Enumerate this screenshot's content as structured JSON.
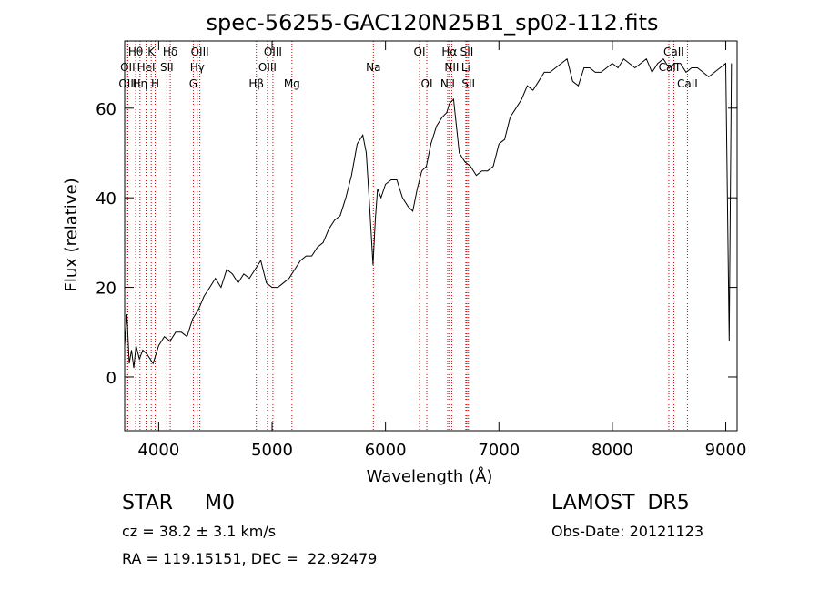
{
  "chart_data": {
    "type": "line",
    "title": "spec-56255-GAC120N25B1_sp02-112.fits",
    "xlabel": "Wavelength (Å)",
    "ylabel": "Flux (relative)",
    "xlim": [
      3700,
      9100
    ],
    "ylim": [
      -12,
      75
    ],
    "xticks": [
      4000,
      5000,
      6000,
      7000,
      8000,
      9000
    ],
    "yticks": [
      0,
      20,
      40,
      60
    ],
    "grid": false,
    "line_color": "#000000",
    "marker_color": "#cc0000",
    "series": [
      {
        "x": [
          3700,
          3720,
          3740,
          3760,
          3780,
          3800,
          3830,
          3860,
          3900,
          3950,
          4000,
          4050,
          4100,
          4150,
          4200,
          4250,
          4300,
          4350,
          4400,
          4450,
          4500,
          4550,
          4600,
          4650,
          4700,
          4750,
          4800,
          4850,
          4900,
          4950,
          5000,
          5050,
          5100,
          5150,
          5200,
          5250,
          5300,
          5350,
          5400,
          5450,
          5500,
          5550,
          5600,
          5650,
          5700,
          5750,
          5800,
          5830,
          5860,
          5890,
          5910,
          5930,
          5960,
          6000,
          6050,
          6100,
          6150,
          6200,
          6240,
          6280,
          6320,
          6360,
          6400,
          6450,
          6500,
          6540,
          6563,
          6600,
          6650,
          6700,
          6750,
          6800,
          6850,
          6900,
          6950,
          7000,
          7050,
          7100,
          7150,
          7200,
          7250,
          7300,
          7350,
          7400,
          7450,
          7500,
          7550,
          7600,
          7650,
          7700,
          7750,
          7800,
          7850,
          7900,
          7950,
          8000,
          8050,
          8100,
          8150,
          8200,
          8250,
          8300,
          8350,
          8400,
          8450,
          8500,
          8550,
          8600,
          8650,
          8700,
          8750,
          8800,
          8850,
          8900,
          8950,
          9000,
          9030,
          9050
        ],
        "y": [
          7,
          14,
          3,
          6,
          2,
          7,
          4,
          6,
          5,
          3,
          7,
          9,
          8,
          10,
          10,
          9,
          13,
          15,
          18,
          20,
          22,
          20,
          24,
          23,
          21,
          23,
          22,
          24,
          26,
          21,
          20,
          20,
          21,
          22,
          24,
          26,
          27,
          27,
          29,
          30,
          33,
          35,
          36,
          40,
          45,
          52,
          54,
          50,
          38,
          25,
          35,
          42,
          40,
          43,
          44,
          44,
          40,
          38,
          37,
          42,
          46,
          47,
          52,
          56,
          58,
          59,
          61,
          62,
          50,
          48,
          47,
          45,
          46,
          46,
          47,
          52,
          53,
          58,
          60,
          62,
          65,
          64,
          66,
          68,
          68,
          69,
          70,
          71,
          66,
          65,
          69,
          69,
          68,
          68,
          69,
          70,
          69,
          71,
          70,
          69,
          70,
          71,
          68,
          70,
          71,
          69,
          70,
          70,
          68,
          69,
          69,
          68,
          67,
          68,
          69,
          70,
          8,
          70
        ]
      }
    ],
    "lines": [
      {
        "label": "Hθ",
        "x": 3797,
        "row": 0
      },
      {
        "label": "K",
        "x": 3934,
        "row": 0
      },
      {
        "label": "Hδ",
        "x": 4102,
        "row": 0
      },
      {
        "label": "OIII",
        "x": 4363,
        "row": 0
      },
      {
        "label": "OIII",
        "x": 5007,
        "row": 0
      },
      {
        "label": "OI",
        "x": 6300,
        "row": 0
      },
      {
        "label": "Hα",
        "x": 6563,
        "row": 0
      },
      {
        "label": "SII",
        "x": 6717,
        "row": 0
      },
      {
        "label": "CaII",
        "x": 8542,
        "row": 0
      },
      {
        "label": "OII",
        "x": 3727,
        "row": 1
      },
      {
        "label": "HeI",
        "x": 3889,
        "row": 1
      },
      {
        "label": "SII",
        "x": 4072,
        "row": 1
      },
      {
        "label": "Hγ",
        "x": 4340,
        "row": 1
      },
      {
        "label": "OIII",
        "x": 4959,
        "row": 1
      },
      {
        "label": "Na",
        "x": 5893,
        "row": 1
      },
      {
        "label": "NII",
        "x": 6584,
        "row": 1
      },
      {
        "label": "Li",
        "x": 6708,
        "row": 1
      },
      {
        "label": "CaII",
        "x": 8498,
        "row": 1
      },
      {
        "label": "OIII",
        "x": 3727,
        "row": 2
      },
      {
        "label": "Hη",
        "x": 3835,
        "row": 2
      },
      {
        "label": "H",
        "x": 3969,
        "row": 2
      },
      {
        "label": "G",
        "x": 4305,
        "row": 2
      },
      {
        "label": "Hβ",
        "x": 4861,
        "row": 2
      },
      {
        "label": "Mg",
        "x": 5175,
        "row": 2
      },
      {
        "label": "OI",
        "x": 6364,
        "row": 2
      },
      {
        "label": "NII",
        "x": 6548,
        "row": 2
      },
      {
        "label": "SII",
        "x": 6731,
        "row": 2
      },
      {
        "label": "CaII",
        "x": 8662,
        "row": 2
      }
    ]
  },
  "info": {
    "class": "STAR     M0",
    "survey": "LAMOST  DR5",
    "cz": "cz = 38.2 ± 3.1 km/s",
    "obs_date": "Obs-Date: 20121123",
    "coords": "RA = 119.15151, DEC =  22.92479"
  }
}
